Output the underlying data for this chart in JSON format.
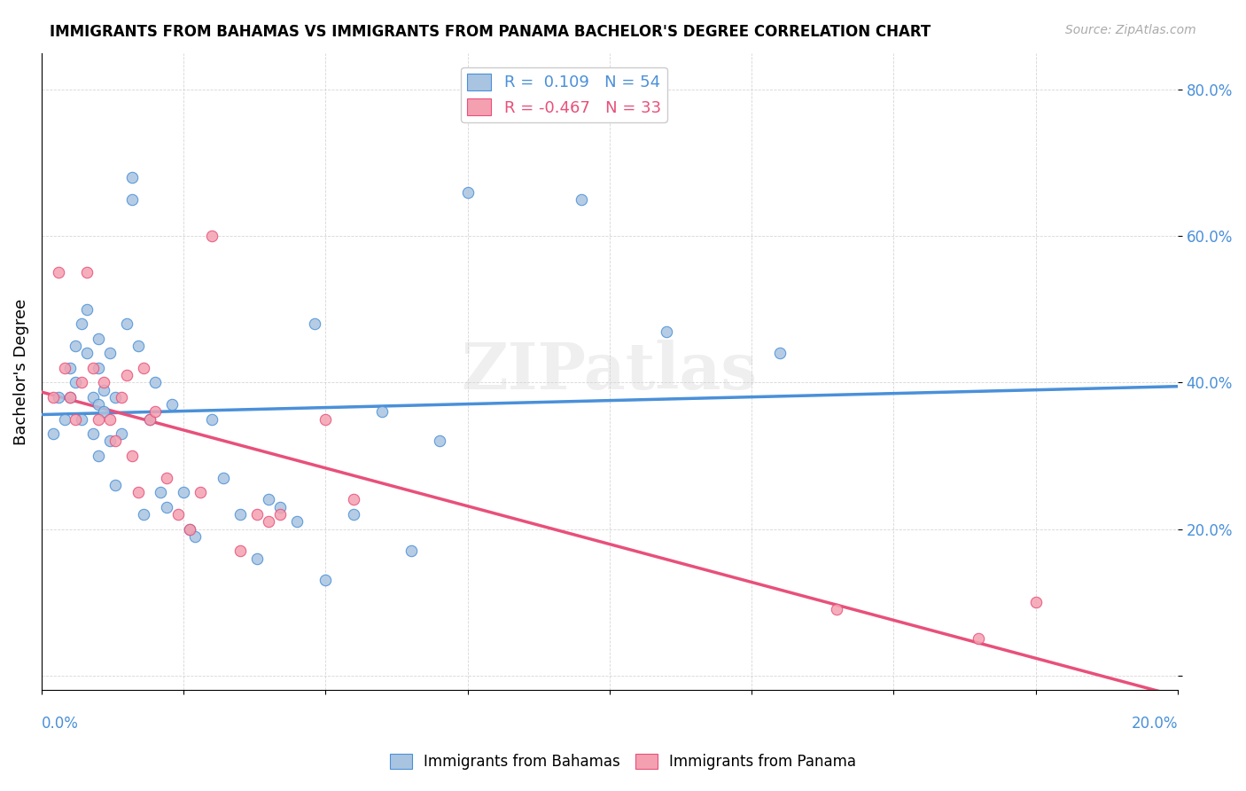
{
  "title": "IMMIGRANTS FROM BAHAMAS VS IMMIGRANTS FROM PANAMA BACHELOR'S DEGREE CORRELATION CHART",
  "source": "Source: ZipAtlas.com",
  "ylabel": "Bachelor's Degree",
  "y_ticks": [
    0.0,
    0.2,
    0.4,
    0.6,
    0.8
  ],
  "y_tick_labels": [
    "",
    "20.0%",
    "40.0%",
    "60.0%",
    "80.0%"
  ],
  "x_range": [
    0.0,
    0.2
  ],
  "y_range": [
    -0.02,
    0.85
  ],
  "legend_r1": "R =  0.109   N = 54",
  "legend_r2": "R = -0.467   N = 33",
  "color_bahamas": "#a8c4e0",
  "color_panama": "#f4a0b0",
  "color_trend_bahamas": "#4a90d9",
  "color_trend_panama": "#e8507a",
  "color_trend_dashed": "#aaaaaa",
  "watermark": "ZIPatlas",
  "bahamas_x": [
    0.002,
    0.003,
    0.004,
    0.005,
    0.005,
    0.006,
    0.006,
    0.007,
    0.007,
    0.008,
    0.008,
    0.009,
    0.009,
    0.01,
    0.01,
    0.01,
    0.01,
    0.011,
    0.011,
    0.012,
    0.012,
    0.013,
    0.013,
    0.014,
    0.015,
    0.016,
    0.016,
    0.017,
    0.018,
    0.019,
    0.02,
    0.021,
    0.022,
    0.023,
    0.025,
    0.026,
    0.027,
    0.03,
    0.032,
    0.035,
    0.038,
    0.04,
    0.042,
    0.045,
    0.048,
    0.05,
    0.055,
    0.06,
    0.065,
    0.07,
    0.075,
    0.095,
    0.11,
    0.13
  ],
  "bahamas_y": [
    0.33,
    0.38,
    0.35,
    0.42,
    0.38,
    0.45,
    0.4,
    0.48,
    0.35,
    0.5,
    0.44,
    0.38,
    0.33,
    0.42,
    0.46,
    0.37,
    0.3,
    0.39,
    0.36,
    0.44,
    0.32,
    0.38,
    0.26,
    0.33,
    0.48,
    0.65,
    0.68,
    0.45,
    0.22,
    0.35,
    0.4,
    0.25,
    0.23,
    0.37,
    0.25,
    0.2,
    0.19,
    0.35,
    0.27,
    0.22,
    0.16,
    0.24,
    0.23,
    0.21,
    0.48,
    0.13,
    0.22,
    0.36,
    0.17,
    0.32,
    0.66,
    0.65,
    0.47,
    0.44
  ],
  "panama_x": [
    0.002,
    0.003,
    0.004,
    0.005,
    0.006,
    0.007,
    0.008,
    0.009,
    0.01,
    0.011,
    0.012,
    0.013,
    0.014,
    0.015,
    0.016,
    0.017,
    0.018,
    0.019,
    0.02,
    0.022,
    0.024,
    0.026,
    0.028,
    0.03,
    0.035,
    0.038,
    0.04,
    0.042,
    0.05,
    0.055,
    0.14,
    0.165,
    0.175
  ],
  "panama_y": [
    0.38,
    0.55,
    0.42,
    0.38,
    0.35,
    0.4,
    0.55,
    0.42,
    0.35,
    0.4,
    0.35,
    0.32,
    0.38,
    0.41,
    0.3,
    0.25,
    0.42,
    0.35,
    0.36,
    0.27,
    0.22,
    0.2,
    0.25,
    0.6,
    0.17,
    0.22,
    0.21,
    0.22,
    0.35,
    0.24,
    0.09,
    0.05,
    0.1
  ]
}
